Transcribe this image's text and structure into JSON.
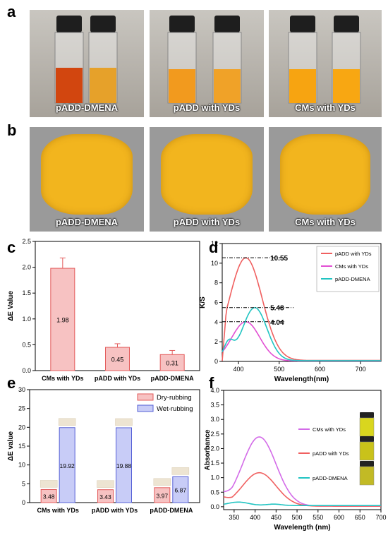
{
  "panel_labels": {
    "a": "a",
    "b": "b",
    "c": "c",
    "d": "d",
    "e": "e",
    "f": "f"
  },
  "panel_a": {
    "captions": [
      "pADD-DMENA",
      "pADD with YDs",
      "CMs with YDs"
    ]
  },
  "panel_b": {
    "captions": [
      "pADD-DMENA",
      "pADD with YDs",
      "CMs with YDs"
    ]
  },
  "colors": {
    "red_bar": "#f7c2c2",
    "red_edge": "#e35b5b",
    "blue_bar": "#c8ccf7",
    "blue_edge": "#5560d6",
    "line_red": "#f06060",
    "line_magenta": "#e24fd3",
    "line_cyan": "#21c4c2",
    "line_violet": "#d36be8"
  },
  "chart_data": [
    {
      "panel": "c",
      "type": "bar",
      "ylabel": "ΔE Value",
      "ylim": [
        0,
        2.5
      ],
      "yticks": [
        "0.0",
        "0.5",
        "1.0",
        "1.5",
        "2.0",
        "2.5"
      ],
      "categories": [
        "CMs with YDs",
        "pADD with YDs",
        "pADD-DMENA"
      ],
      "values": [
        1.98,
        0.45,
        0.31
      ],
      "value_labels": [
        "1.98",
        "0.45",
        "0.31"
      ],
      "errors": [
        0.2,
        0.07,
        0.08
      ]
    },
    {
      "panel": "d",
      "type": "line",
      "xlabel": "Wavelength(nm)",
      "ylabel": "K/S",
      "xlim": [
        360,
        750
      ],
      "ylim": [
        0,
        12
      ],
      "xticks": [
        "400",
        "500",
        "600",
        "700"
      ],
      "yticks": [
        "0",
        "2",
        "4",
        "6",
        "8",
        "10",
        "12"
      ],
      "legend_position": "top-right",
      "series": [
        {
          "name": "pADD with YDs",
          "peak_x": 418,
          "peak_y": 10.55
        },
        {
          "name": "CMs with YDs",
          "peak_x": 418,
          "peak_y": 4.04
        },
        {
          "name": "pADD-DMENA",
          "peak_x": 440,
          "peak_y": 5.48
        }
      ],
      "annotations": [
        "10.55",
        "5.48",
        "4.04"
      ]
    },
    {
      "panel": "e",
      "type": "bar",
      "ylabel": "ΔE value",
      "ylim": [
        0,
        30
      ],
      "yticks": [
        "0",
        "5",
        "10",
        "15",
        "20",
        "25",
        "30"
      ],
      "categories": [
        "CMs with YDs",
        "pADD with YDs",
        "pADD-DMENA"
      ],
      "legend_position": "top-right",
      "series": [
        {
          "name": "Dry-rubbing",
          "values": [
            3.48,
            3.43,
            3.97
          ],
          "value_labels": [
            "3.48",
            "3.43",
            "3.97"
          ]
        },
        {
          "name": "Wet-rubbing",
          "values": [
            19.92,
            19.88,
            6.87
          ],
          "value_labels": [
            "19.92",
            "19.88",
            "6.87"
          ]
        }
      ]
    },
    {
      "panel": "f",
      "type": "line",
      "xlabel": "Wavelength (nm)",
      "ylabel": "Absorbance",
      "xlim": [
        325,
        700
      ],
      "ylim": [
        -0.1,
        4.0
      ],
      "xticks": [
        "350",
        "400",
        "450",
        "500",
        "550",
        "600",
        "650",
        "700"
      ],
      "yticks": [
        "0.0",
        "0.5",
        "1.0",
        "1.5",
        "2.0",
        "2.5",
        "3.0",
        "3.5",
        "4.0"
      ],
      "legend_position": "right",
      "series": [
        {
          "name": "CMs with YDs",
          "peak_x": 410,
          "peak_y": 2.4
        },
        {
          "name": "pADD with YDs",
          "peak_x": 410,
          "peak_y": 1.17
        },
        {
          "name": "pADD-DMENA",
          "peak_x": 360,
          "peak_y": 0.16
        }
      ]
    }
  ]
}
